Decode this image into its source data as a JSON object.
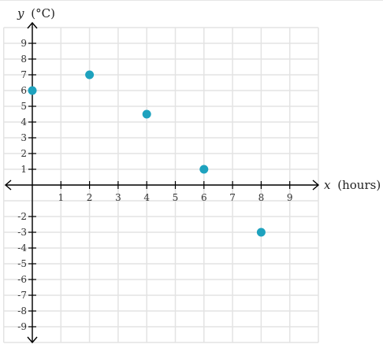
{
  "chart_data": {
    "type": "scatter",
    "xlabel_var": "x",
    "xlabel_unit": "(hours)",
    "ylabel_var": "y",
    "ylabel_unit": "(°C)",
    "xlim": [
      -1,
      10
    ],
    "ylim": [
      -10,
      10
    ],
    "x_ticks": [
      1,
      2,
      3,
      4,
      5,
      6,
      7,
      8,
      9
    ],
    "y_ticks": [
      9,
      8,
      7,
      6,
      5,
      4,
      3,
      2,
      1,
      -2,
      -3,
      -4,
      -5,
      -6,
      -7,
      -8,
      -9
    ],
    "grid": true,
    "point_color": "#1ea2be",
    "points": [
      {
        "x": 0,
        "y": 6
      },
      {
        "x": 2,
        "y": 7
      },
      {
        "x": 4,
        "y": 4.5
      },
      {
        "x": 6,
        "y": 1
      },
      {
        "x": 8,
        "y": -3
      }
    ]
  }
}
